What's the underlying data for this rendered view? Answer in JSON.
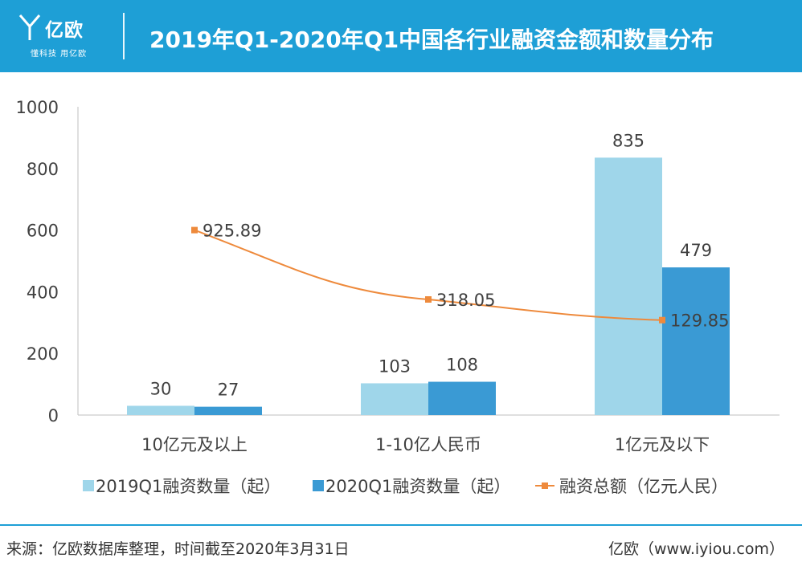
{
  "header": {
    "logo_text": "亿欧",
    "logo_slogan": "懂科技 用亿欧",
    "title": "2019年Q1-2020年Q1中国各行业融资金额和数量分布"
  },
  "colors": {
    "header_bg": "#1e9fd6",
    "series_2019": "#9fd6ea",
    "series_2020": "#3a9ad4",
    "series_total": "#ee8a3c"
  },
  "chart_data": {
    "type": "bar",
    "categories": [
      "10亿元及以上",
      "1-10亿人民币",
      "1亿元及以下"
    ],
    "series": [
      {
        "name": "2019Q1融资数量（起）",
        "kind": "bar",
        "values": [
          30,
          103,
          835
        ],
        "labels": [
          "30",
          "103",
          "835"
        ]
      },
      {
        "name": "2020Q1融资数量（起）",
        "kind": "bar",
        "values": [
          27,
          108,
          479
        ],
        "labels": [
          "27",
          "108",
          "479"
        ]
      },
      {
        "name": "融资总额（亿元人民）",
        "kind": "line",
        "plotted_values": [
          600,
          375,
          308
        ],
        "labels": [
          "925.89",
          "318.05",
          "129.85"
        ]
      }
    ],
    "ylim": [
      0,
      1000
    ],
    "y_ticks": [
      "0",
      "200",
      "400",
      "600",
      "800",
      "1000"
    ],
    "legend_position": "bottom",
    "grid": false
  },
  "footer": {
    "source": "来源：亿欧数据库整理，时间截至2020年3月31日",
    "website": "亿欧（www.iyiou.com）"
  }
}
